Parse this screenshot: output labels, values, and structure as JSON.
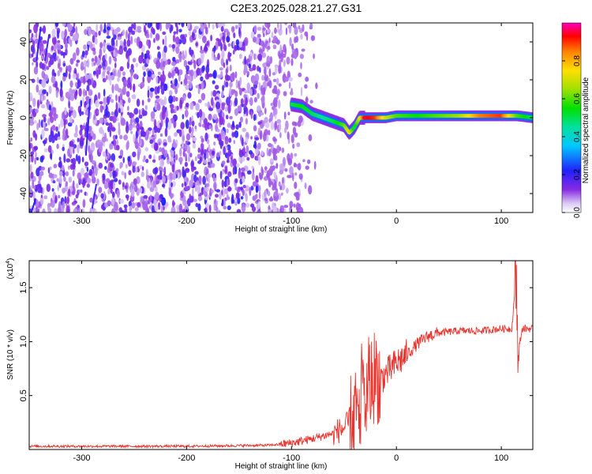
{
  "title": "C2E3.2025.028.21.27.G31",
  "chart_data": [
    {
      "type": "heatmap",
      "xlabel": "Height of straight line (km)",
      "ylabel": "Frequency (Hz)",
      "xlim": [
        -350,
        130
      ],
      "ylim": [
        -50,
        50
      ],
      "xticks": [
        -300,
        -200,
        -100,
        0,
        100
      ],
      "xtick_labels": [
        "-300",
        "-200",
        "-100",
        "0",
        "100"
      ],
      "yticks": [
        -40,
        -20,
        0,
        20,
        40
      ],
      "ytick_labels": [
        "-40",
        "-20",
        "0",
        "20",
        "40"
      ],
      "colorbar": {
        "label": "Normalized spectral amplitude",
        "range": [
          0,
          1
        ],
        "ticks": [
          0.0,
          0.2,
          0.4,
          0.6,
          0.8
        ],
        "tick_labels": [
          "0.0",
          "0.2",
          "0.4",
          "0.6",
          "0.8"
        ]
      },
      "ridge": {
        "x": [
          -100,
          -90,
          -80,
          -70,
          -60,
          -50,
          -45,
          -40,
          -35,
          -30,
          -20,
          -10,
          0,
          20,
          40,
          60,
          80,
          100,
          115,
          130
        ],
        "frequency": [
          7,
          6,
          2,
          0,
          -2,
          -4,
          -8,
          -5,
          0,
          0,
          0,
          0,
          1,
          1,
          1,
          1,
          1,
          1,
          1,
          0
        ],
        "amplitude": [
          0.5,
          0.55,
          0.5,
          0.45,
          0.5,
          0.6,
          0.75,
          0.5,
          0.7,
          0.95,
          0.9,
          0.7,
          0.6,
          0.55,
          0.6,
          0.65,
          0.85,
          0.9,
          0.6,
          0.5
        ]
      },
      "noise_region_x": [
        -350,
        -100
      ]
    },
    {
      "type": "line",
      "xlabel": "Height of straight line (km)",
      "ylabel": "SNR (10 * v/v)",
      "y_multiplier": "(x10",
      "y_multiplier_exp": "4",
      "y_multiplier_close": ")",
      "xlim": [
        -350,
        130
      ],
      "ylim": [
        0,
        1.75
      ],
      "xticks": [
        -300,
        -200,
        -100,
        0,
        100
      ],
      "xtick_labels": [
        "-300",
        "-200",
        "-100",
        "0",
        "100"
      ],
      "yticks": [
        0.5,
        1.0,
        1.5
      ],
      "ytick_labels": [
        "0.5",
        "1.0",
        "1.5"
      ],
      "color": "#e8342e",
      "series": [
        {
          "x": [
            -350,
            -300,
            -200,
            -120,
            -100,
            -80,
            -60,
            -50,
            -40,
            -30,
            -25,
            -20,
            -15,
            -10,
            0,
            10,
            20,
            30,
            40,
            60,
            80,
            100,
            110,
            114,
            116,
            120,
            130
          ],
          "y": [
            0.03,
            0.03,
            0.03,
            0.04,
            0.06,
            0.1,
            0.15,
            0.2,
            0.3,
            0.45,
            0.6,
            0.7,
            0.65,
            0.7,
            0.8,
            0.88,
            0.98,
            1.05,
            1.08,
            1.1,
            1.1,
            1.12,
            1.12,
            1.6,
            0.9,
            1.12,
            1.12
          ]
        }
      ]
    }
  ]
}
